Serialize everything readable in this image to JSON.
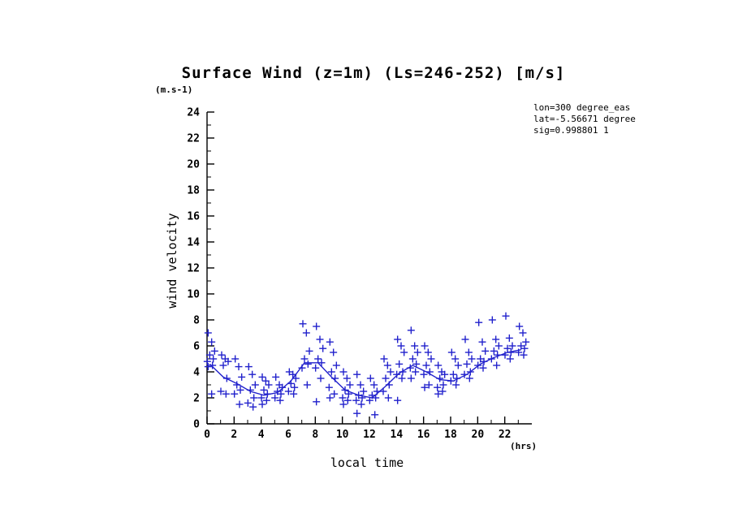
{
  "chart_data": {
    "type": "scatter",
    "title": "Surface Wind (z=1m) (Ls=246-252) [m/s]",
    "xlabel": "local time",
    "ylabel": "wind velocity",
    "x_unit": "(hrs)",
    "y_unit": "(m.s-1)",
    "xlim": [
      0,
      24
    ],
    "ylim": [
      0,
      24
    ],
    "x_ticks": [
      0,
      2,
      4,
      6,
      8,
      10,
      12,
      14,
      16,
      18,
      20,
      22
    ],
    "y_ticks": [
      0,
      2,
      4,
      6,
      8,
      10,
      12,
      14,
      16,
      18,
      20,
      22,
      24
    ],
    "grid": false,
    "marker": "+",
    "marker_color": "#2222cc",
    "line_color": "#2222cc",
    "axis_color": "#000000",
    "annotations": {
      "line1": "lon=300 degree_eas",
      "line2": "lat=-5.56671 degree",
      "line3": "sig=0.998801 1"
    },
    "scatter_by_hour": [
      [
        7.0,
        6.3,
        5.6,
        5.3,
        5.0,
        4.8,
        4.5,
        4.4,
        2.3
      ],
      [
        5.3,
        5.0,
        4.8,
        4.5,
        3.5,
        2.5,
        2.3
      ],
      [
        5.0,
        4.4,
        3.6,
        3.0,
        2.6,
        2.3,
        1.5
      ],
      [
        4.4,
        3.8,
        3.0,
        2.6,
        2.0,
        1.6,
        1.3
      ],
      [
        3.6,
        3.3,
        3.0,
        2.6,
        2.3,
        2.0,
        1.8,
        1.5
      ],
      [
        3.6,
        3.0,
        2.8,
        2.5,
        2.3,
        2.0,
        1.8
      ],
      [
        4.0,
        3.8,
        3.5,
        3.1,
        2.8,
        2.5,
        2.3
      ],
      [
        7.7,
        7.0,
        5.6,
        5.0,
        4.6,
        4.3,
        3.0
      ],
      [
        7.5,
        6.5,
        5.8,
        5.0,
        4.7,
        4.3,
        3.5,
        1.7
      ],
      [
        6.3,
        5.5,
        4.5,
        4.0,
        3.5,
        2.8,
        2.3,
        2.0
      ],
      [
        4.0,
        3.5,
        3.0,
        2.6,
        2.3,
        2.0,
        1.8,
        1.5
      ],
      [
        3.8,
        3.0,
        2.5,
        2.2,
        2.0,
        1.8,
        1.5,
        0.8
      ],
      [
        3.5,
        3.0,
        2.5,
        2.2,
        2.0,
        1.8,
        0.7
      ],
      [
        5.0,
        4.5,
        4.0,
        3.5,
        3.0,
        2.5,
        2.0
      ],
      [
        6.5,
        6.0,
        5.5,
        4.6,
        4.0,
        3.8,
        3.5,
        1.8
      ],
      [
        7.2,
        6.0,
        5.5,
        5.0,
        4.6,
        4.3,
        4.0,
        3.5
      ],
      [
        6.0,
        5.5,
        5.0,
        4.5,
        4.0,
        3.8,
        3.0,
        2.8
      ],
      [
        4.5,
        4.0,
        3.8,
        3.5,
        3.0,
        2.8,
        2.5,
        2.3
      ],
      [
        5.5,
        5.0,
        4.5,
        3.8,
        3.5,
        3.3,
        3.0
      ],
      [
        6.5,
        5.5,
        5.0,
        4.6,
        4.0,
        3.8,
        3.5
      ],
      [
        7.8,
        6.3,
        5.6,
        5.0,
        4.8,
        4.5,
        4.3
      ],
      [
        8.0,
        6.5,
        6.0,
        5.6,
        5.3,
        5.0,
        4.5
      ],
      [
        8.3,
        6.6,
        6.0,
        5.8,
        5.5,
        5.3,
        5.0
      ],
      [
        7.5,
        7.0,
        6.3,
        6.0,
        5.8,
        5.5,
        5.3
      ]
    ],
    "mean_line": {
      "x": [
        0,
        1,
        2,
        3,
        4,
        5,
        6,
        7,
        8,
        9,
        10,
        11,
        12,
        13,
        14,
        15,
        16,
        17,
        18,
        19,
        20,
        21,
        22,
        23
      ],
      "values": [
        4.6,
        3.6,
        3.1,
        2.5,
        2.2,
        2.4,
        3.3,
        4.7,
        4.7,
        3.6,
        2.6,
        2.2,
        2.0,
        2.9,
        3.9,
        4.5,
        4.0,
        3.4,
        3.3,
        3.8,
        4.6,
        5.1,
        5.5,
        5.7
      ]
    }
  }
}
